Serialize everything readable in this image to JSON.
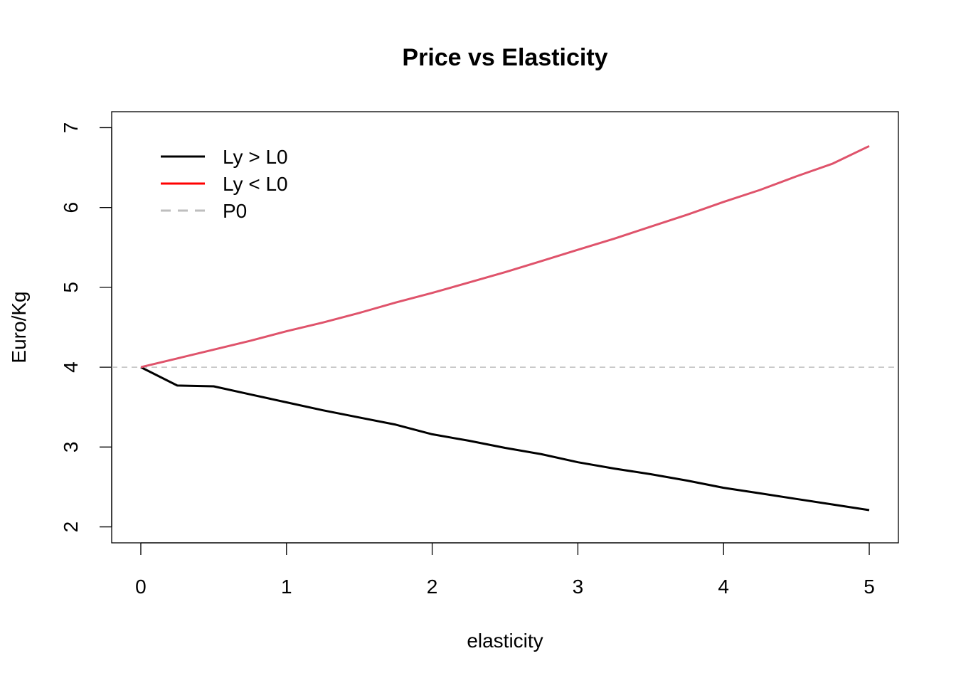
{
  "chart_data": {
    "type": "line",
    "title": "Price vs Elasticity",
    "xlabel": "elasticity",
    "ylabel": "Euro/Kg",
    "xlim": [
      -0.2,
      5.2
    ],
    "ylim": [
      1.8,
      7.2
    ],
    "x_ticks": [
      "0",
      "1",
      "2",
      "3",
      "4",
      "5"
    ],
    "y_ticks": [
      "2",
      "3",
      "4",
      "5",
      "6",
      "7"
    ],
    "grid": false,
    "legend_position": "top-left",
    "x": [
      0,
      0.25,
      0.5,
      0.75,
      1,
      1.25,
      1.5,
      1.75,
      2,
      2.25,
      2.5,
      2.75,
      3,
      3.25,
      3.5,
      3.75,
      4,
      4.25,
      4.5,
      4.75,
      5
    ],
    "series": [
      {
        "name": "Ly > L0",
        "color": "#000000",
        "values": [
          4.0,
          3.77,
          3.76,
          3.66,
          3.56,
          3.46,
          3.37,
          3.28,
          3.16,
          3.08,
          2.99,
          2.91,
          2.81,
          2.73,
          2.66,
          2.58,
          2.49,
          2.42,
          2.35,
          2.28,
          2.21
        ]
      },
      {
        "name": "Ly < L0",
        "color": "#DF536B",
        "legend_color": "#FF0000",
        "values": [
          4.0,
          4.11,
          4.22,
          4.33,
          4.45,
          4.56,
          4.68,
          4.81,
          4.93,
          5.06,
          5.19,
          5.33,
          5.47,
          5.61,
          5.76,
          5.91,
          6.07,
          6.22,
          6.39,
          6.55,
          6.77
        ]
      }
    ],
    "reference_line": {
      "name": "P0",
      "y": 4,
      "color": "#BEBEBE",
      "style": "dashed"
    }
  }
}
